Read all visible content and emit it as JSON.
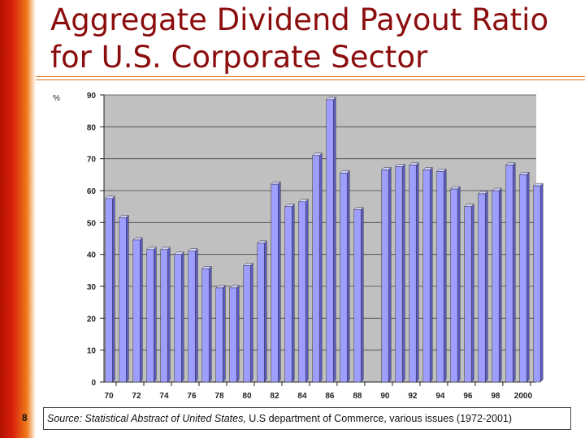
{
  "title_line1": "Aggregate Dividend Payout Ratio",
  "title_line2": "for U.S. Corporate Sector",
  "page_number": "8",
  "source": {
    "prefix": "Source: Statistical Abstract of United States,",
    "rest": " U.S department of Commerce, various issues (1972-2001)"
  },
  "colors": {
    "bar_face": "#9e9eff",
    "bar_side": "#5c5cc8",
    "plot_bg": "#c0c0c0",
    "title": "#8b0d0d",
    "band": "#d6200c"
  },
  "chart_data": {
    "type": "bar",
    "ylabel": "%",
    "ylim": [
      0,
      90
    ],
    "yticks": [
      0,
      10,
      20,
      30,
      40,
      50,
      60,
      70,
      80,
      90
    ],
    "xlim": [
      1970,
      2001
    ],
    "xticks": [
      "70",
      "72",
      "74",
      "76",
      "78",
      "80",
      "82",
      "84",
      "86",
      "88",
      "90",
      "92",
      "94",
      "96",
      "98",
      "2000"
    ],
    "grid": true,
    "categories": [
      1970,
      1971,
      1972,
      1973,
      1974,
      1975,
      1976,
      1977,
      1978,
      1979,
      1980,
      1981,
      1982,
      1983,
      1984,
      1985,
      1986,
      1987,
      1988,
      1989,
      1990,
      1991,
      1992,
      1993,
      1994,
      1995,
      1996,
      1997,
      1998,
      1999,
      2000,
      2001
    ],
    "values": [
      57.5,
      51.5,
      44.5,
      41.5,
      41.5,
      40,
      41,
      35.5,
      29.5,
      29.5,
      36.5,
      43.5,
      62,
      55,
      56.5,
      71,
      88.5,
      65.5,
      54,
      null,
      66.5,
      67.5,
      68,
      66.5,
      66,
      60.5,
      55,
      59,
      60,
      68,
      65,
      61.5
    ]
  }
}
